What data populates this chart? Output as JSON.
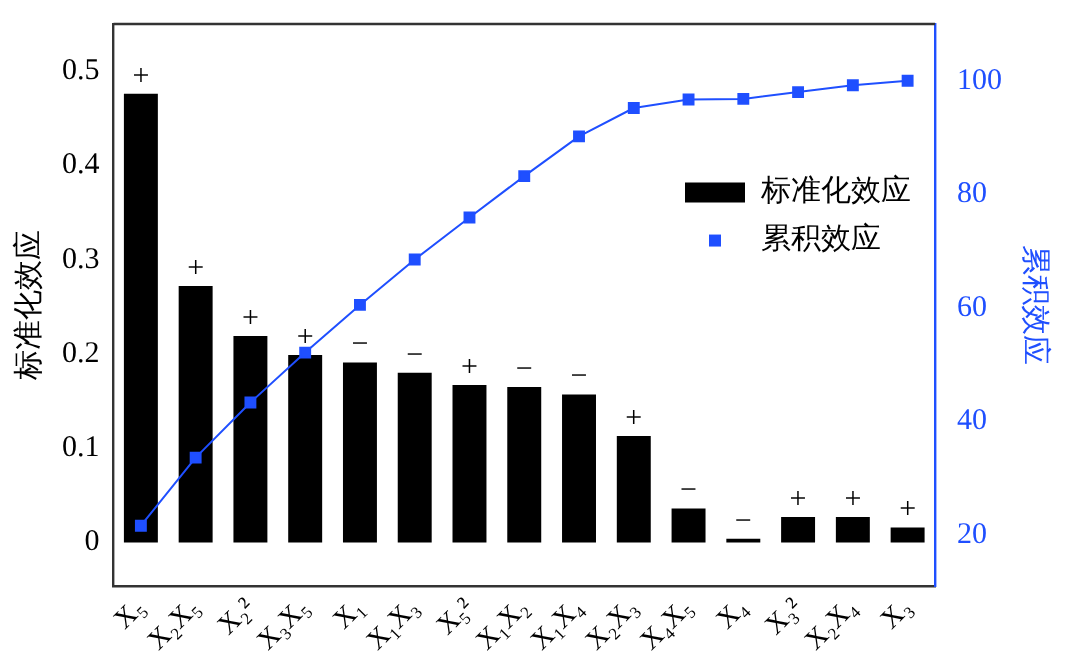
{
  "chart_data": {
    "type": "bar",
    "ylabel": "标准化效应",
    "y2label": "累积效应",
    "categories": [
      "X₅",
      "X₂X₅",
      "X₂²",
      "X₃X₅",
      "X₁",
      "X₁X₃",
      "X₅²",
      "X₁X₂",
      "X₁X₄",
      "X₂X₃",
      "X₄X₅",
      "X₄",
      "X₃²",
      "X₂X₄",
      "X₃"
    ],
    "series": [
      {
        "name": "标准化效应",
        "color": "#000000",
        "values": [
          0.476,
          0.272,
          0.219,
          0.199,
          0.191,
          0.18,
          0.167,
          0.165,
          0.157,
          0.113,
          0.036,
          0.004,
          0.027,
          0.027,
          0.016
        ],
        "value_labels": [
          "+",
          "+",
          "+",
          "+",
          "−",
          "−",
          "+",
          "−",
          "−",
          "+",
          "−",
          "−",
          "+",
          "+",
          "+"
        ]
      },
      {
        "name": "累积效应",
        "type": "line",
        "axis": "y2",
        "color": "#1f4fff",
        "values": [
          21.6,
          33.6,
          43.3,
          52.1,
          60.5,
          68.5,
          75.9,
          83.2,
          90.2,
          95.2,
          96.7,
          96.8,
          98.0,
          99.2,
          100
        ]
      }
    ],
    "ylim": [
      -0.046,
      0.55
    ],
    "yticks": [
      0,
      0.1,
      0.2,
      0.3,
      0.4,
      0.5
    ],
    "y2lim": [
      11,
      110
    ],
    "y2ticks": [
      20,
      40,
      60,
      80,
      100
    ],
    "marker": "square",
    "legend": "right",
    "grid": false
  }
}
